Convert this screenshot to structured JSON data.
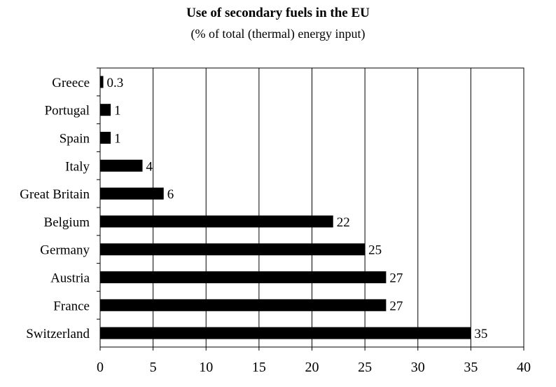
{
  "chart_data": {
    "type": "bar",
    "orientation": "horizontal",
    "title": "Use of secondary fuels in the EU",
    "subtitle": "(% of total (thermal) energy input)",
    "xlabel": "",
    "ylabel": "",
    "xlim": [
      0,
      40
    ],
    "xticks": [
      0,
      5,
      10,
      15,
      20,
      25,
      30,
      35,
      40
    ],
    "grid": true,
    "categories": [
      "Greece",
      "Portugal",
      "Spain",
      "Italy",
      "Great Britain",
      "Belgium",
      "Germany",
      "Austria",
      "France",
      "Switzerland"
    ],
    "values": [
      0.3,
      1,
      1,
      4,
      6,
      22,
      25,
      27,
      27,
      35
    ],
    "value_labels": [
      "0.3",
      "1",
      "1",
      "4",
      "6",
      "22",
      "25",
      "27",
      "27",
      "35"
    ],
    "bar_color": "#000000"
  }
}
